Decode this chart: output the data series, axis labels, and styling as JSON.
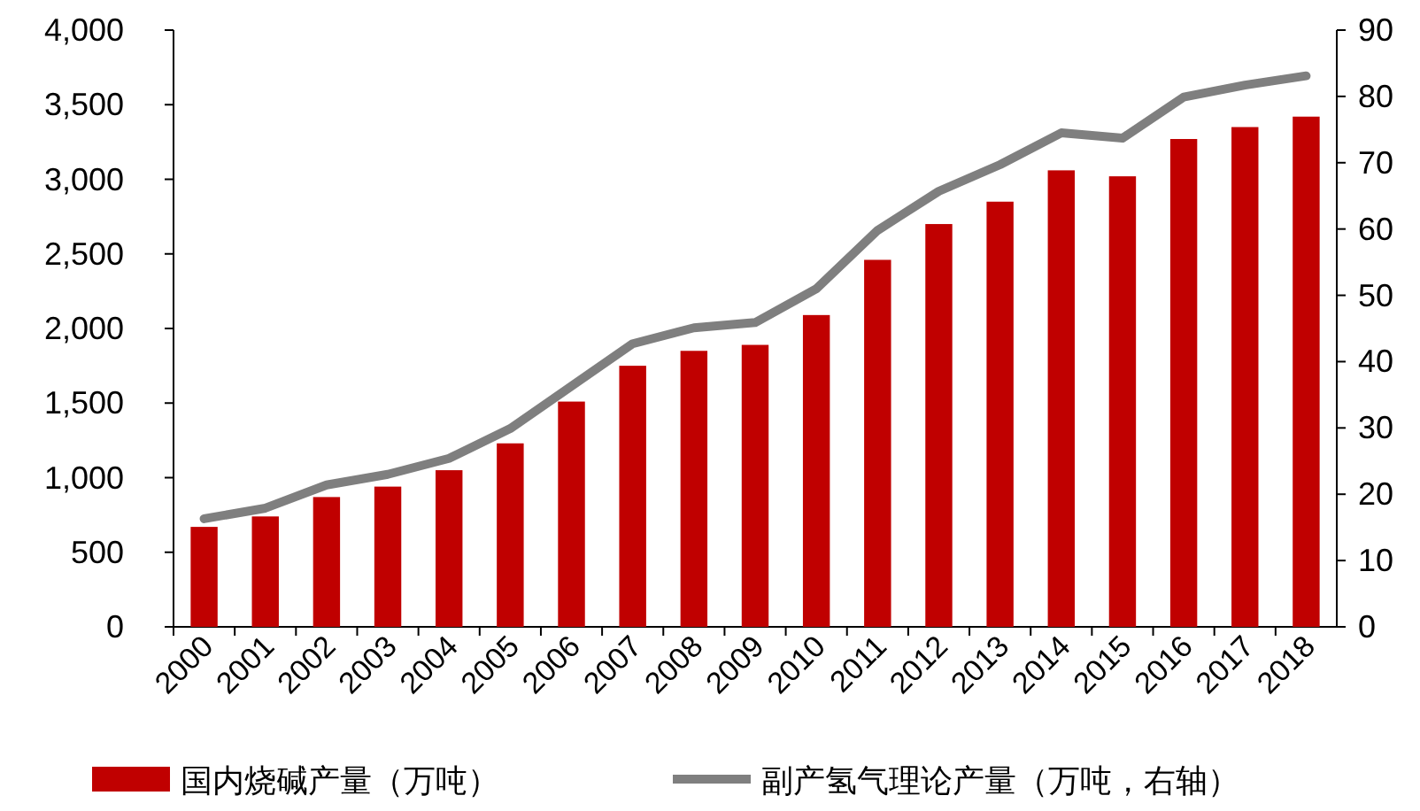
{
  "chart_data": {
    "type": "bar",
    "categories": [
      "2000",
      "2001",
      "2002",
      "2003",
      "2004",
      "2005",
      "2006",
      "2007",
      "2008",
      "2009",
      "2010",
      "2011",
      "2012",
      "2013",
      "2014",
      "2015",
      "2016",
      "2017",
      "2018"
    ],
    "series": [
      {
        "name": "国内烧碱产量（万吨）",
        "color": "#c00000",
        "values": [
          670,
          740,
          870,
          940,
          1050,
          1230,
          1510,
          1750,
          1850,
          1890,
          2090,
          2460,
          2700,
          2850,
          3060,
          3020,
          3270,
          3350,
          3420
        ]
      },
      {
        "name": "副产氢气理论产量（万吨，右轴）",
        "type": "line",
        "axis": "y2",
        "color": "#7f7f7f",
        "values": [
          16.3,
          17.9,
          21.4,
          23,
          25.4,
          29.9,
          36.3,
          42.7,
          45.1,
          45.9,
          51,
          59.8,
          65.7,
          69.7,
          74.5,
          73.7,
          79.9,
          81.7,
          83.1
        ]
      }
    ],
    "ylim": [
      0,
      4000
    ],
    "yticks": [
      0,
      {
        "value": 500,
        "label": "500"
      },
      {
        "value": 1000,
        "label": "1,000"
      },
      {
        "value": 1500,
        "label": "1,500"
      },
      {
        "value": 2000,
        "label": "2,000"
      },
      {
        "value": 2500,
        "label": "2,500"
      },
      {
        "value": 3000,
        "label": "3,000"
      },
      {
        "value": 3500,
        "label": "3,500"
      },
      {
        "value": 4000,
        "label": "4,000"
      }
    ],
    "y2lim": [
      0,
      90
    ],
    "y2ticks": [
      0,
      10,
      20,
      30,
      40,
      50,
      60,
      70,
      80,
      90
    ],
    "legend": "bottom",
    "grid": false,
    "marker": "none",
    "line_style": "solid"
  }
}
